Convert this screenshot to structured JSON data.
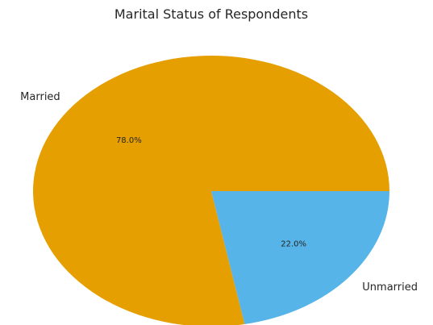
{
  "chart_data": {
    "type": "pie",
    "title": "Marital Status of Respondents",
    "slices": [
      {
        "label": "Married",
        "value": 78.0,
        "pct_label": "78.0%",
        "color": "#E69F00"
      },
      {
        "label": "Unmarried",
        "value": 22.0,
        "pct_label": "22.0%",
        "color": "#56B4E9"
      }
    ],
    "start_angle_deg": 0,
    "direction": "counterclockwise",
    "legend": "none",
    "grid": false
  }
}
